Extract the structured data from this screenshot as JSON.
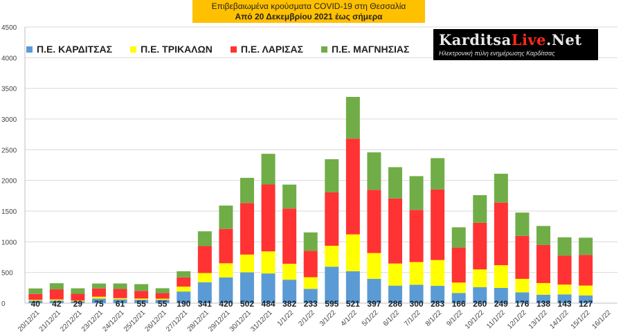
{
  "header": {
    "title_line1": "Επιβεβαιωμένα κρούσματα COVID-19 στη Θεσσαλία",
    "title_line2": "Από 20 Δεκεμβρίου 2021 έως σήμερα"
  },
  "logo": {
    "brand_part1": "Karditsa",
    "brand_part2": "Live",
    "brand_part3": ".Net",
    "tagline": "Ηλεκτρονική πύλη ενημέρωσης Καρδίτσας"
  },
  "colors": {
    "karditsa": "#5b9bd5",
    "trikala": "#ffff00",
    "larisa": "#ff3333",
    "magnisia": "#70ad47",
    "title_bg": "#ffc000"
  },
  "chart_data": {
    "type": "bar",
    "stacked": true,
    "ylim": [
      0,
      4500
    ],
    "yticks": [
      0,
      500,
      1000,
      1500,
      2000,
      2500,
      3000,
      3500,
      4000,
      4500
    ],
    "grid": true,
    "legend_position": "top-left",
    "categories": [
      "20/12/21",
      "21/12/21",
      "22/12/21",
      "23/12/21",
      "24/12/21",
      "25/12/21",
      "26/12/21",
      "27/12/21",
      "28/12/21",
      "29/12/21",
      "30/12/21",
      "31/12/21",
      "1/1/22",
      "2/1/22",
      "3/1/22",
      "4/1/22",
      "5/1/22",
      "6/1/22",
      "7/1/22",
      "8/1/22",
      "9/1/22",
      "10/1/22",
      "11/1/22",
      "12/1/22",
      "13/1/22",
      "14/1/22",
      "15/1/22",
      "16/1/22"
    ],
    "series": [
      {
        "name": "Π.Ε. ΚΑΡΔΙΤΣΑΣ",
        "values": [
          40,
          42,
          29,
          75,
          61,
          55,
          55,
          190,
          341,
          420,
          502,
          484,
          382,
          233,
          595,
          521,
          397,
          286,
          300,
          283,
          166,
          260,
          249,
          176,
          138,
          143,
          127,
          null
        ]
      },
      {
        "name": "Π.Ε. ΤΡΙΚΑΛΩΝ",
        "values": [
          15,
          18,
          13,
          30,
          20,
          20,
          18,
          80,
          150,
          230,
          290,
          360,
          260,
          190,
          340,
          600,
          420,
          360,
          370,
          420,
          170,
          290,
          370,
          220,
          190,
          160,
          160,
          null
        ]
      },
      {
        "name": "Π.Ε. ΛΑΡΙΣΑΣ",
        "values": [
          95,
          165,
          110,
          135,
          150,
          125,
          90,
          150,
          440,
          560,
          840,
          1090,
          900,
          430,
          870,
          1560,
          1030,
          1060,
          850,
          1150,
          570,
          760,
          1020,
          700,
          620,
          470,
          500,
          null
        ]
      },
      {
        "name": "Π.Ε. ΜΑΓΝΗΣΙΑΣ",
        "values": [
          90,
          100,
          90,
          80,
          90,
          110,
          80,
          100,
          240,
          380,
          410,
          500,
          390,
          300,
          540,
          680,
          610,
          510,
          550,
          510,
          330,
          450,
          470,
          380,
          310,
          300,
          280,
          null
        ]
      }
    ],
    "data_labels": [
      40,
      42,
      29,
      75,
      61,
      55,
      55,
      190,
      341,
      420,
      502,
      484,
      382,
      233,
      595,
      521,
      397,
      286,
      300,
      283,
      166,
      260,
      249,
      176,
      138,
      143,
      127,
      null
    ]
  }
}
